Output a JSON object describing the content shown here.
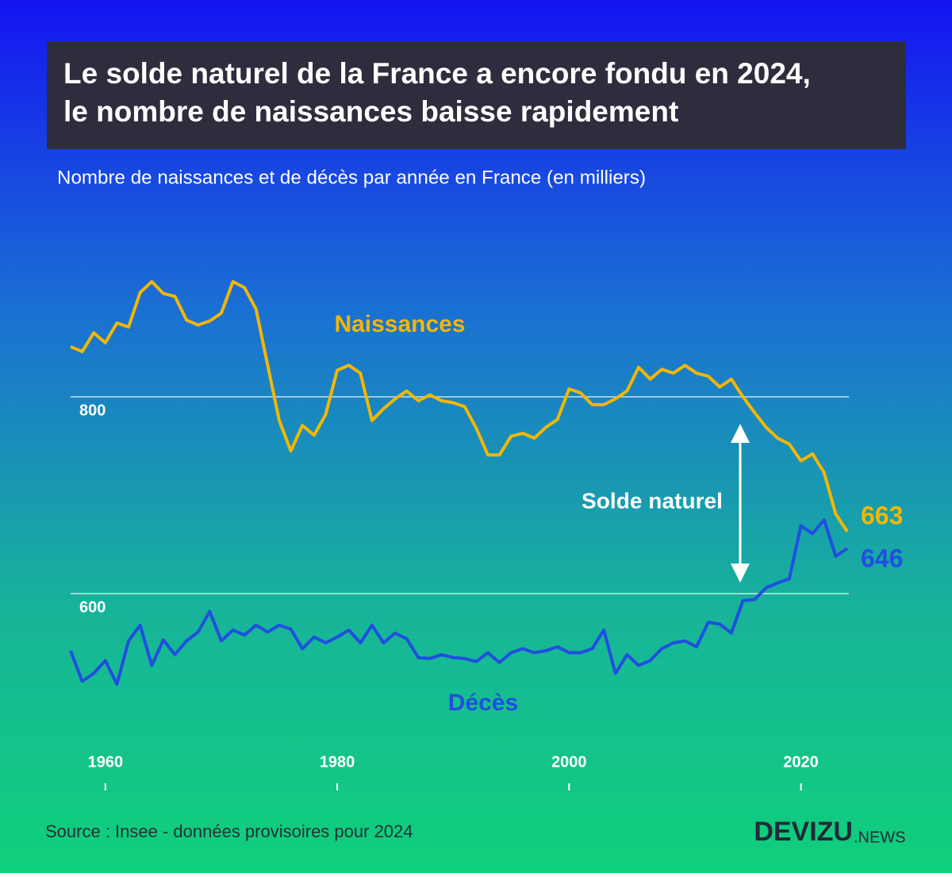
{
  "chart_data": {
    "type": "line",
    "title": [
      "Le solde naturel de la France a encore fondu en 2024,",
      "le nombre de naissances baisse rapidement"
    ],
    "subtitle": "Nombre de naissances et de décès par année en France (en milliers)",
    "annotation": "Solde naturel",
    "source": "Source : Insee - données provisoires pour 2024",
    "brand": "DEVIZU",
    "brand_suffix": ".NEWS",
    "x": [
      1957,
      1958,
      1959,
      1960,
      1961,
      1962,
      1963,
      1964,
      1965,
      1966,
      1967,
      1968,
      1969,
      1970,
      1971,
      1972,
      1973,
      1974,
      1975,
      1976,
      1977,
      1978,
      1979,
      1980,
      1981,
      1982,
      1983,
      1984,
      1985,
      1986,
      1987,
      1988,
      1989,
      1990,
      1991,
      1992,
      1993,
      1994,
      1995,
      1996,
      1997,
      1998,
      1999,
      2000,
      2001,
      2002,
      2003,
      2004,
      2005,
      2006,
      2007,
      2008,
      2009,
      2010,
      2011,
      2012,
      2013,
      2014,
      2015,
      2016,
      2017,
      2018,
      2019,
      2020,
      2021,
      2022,
      2023,
      2024
    ],
    "series": [
      {
        "name": "Naissances",
        "color": "#f2b705",
        "values": [
          851,
          846,
          865,
          855,
          875,
          871,
          906,
          917,
          905,
          902,
          878,
          873,
          877,
          885,
          917,
          911,
          889,
          832,
          776,
          745,
          771,
          761,
          782,
          827,
          832,
          824,
          776,
          788,
          798,
          806,
          796,
          802,
          796,
          794,
          790,
          768,
          741,
          741,
          760,
          763,
          758,
          769,
          777,
          808,
          804,
          792,
          792,
          798,
          806,
          830,
          818,
          828,
          824,
          832,
          824,
          821,
          810,
          818,
          800,
          784,
          769,
          758,
          752,
          735,
          742,
          723,
          681,
          663
        ]
      },
      {
        "name": "Décès",
        "color": "#1f4fe0",
        "values": [
          542,
          511,
          519,
          532,
          508,
          552,
          568,
          527,
          553,
          538,
          552,
          561,
          582,
          552,
          563,
          558,
          568,
          561,
          568,
          564,
          544,
          556,
          550,
          556,
          563,
          550,
          568,
          550,
          560,
          554,
          535,
          534,
          538,
          535,
          534,
          531,
          540,
          530,
          540,
          544,
          540,
          542,
          546,
          540,
          540,
          544,
          563,
          519,
          538,
          527,
          532,
          544,
          550,
          552,
          546,
          571,
          569,
          560,
          593,
          594,
          606,
          611,
          615,
          669,
          661,
          675,
          638,
          646
        ]
      }
    ],
    "xlim": [
      1957,
      2024
    ],
    "xticks": [
      1960,
      1980,
      2000,
      2020
    ],
    "ylim": [
      480,
      960
    ],
    "yticks": [
      600,
      800
    ],
    "grid": true
  }
}
